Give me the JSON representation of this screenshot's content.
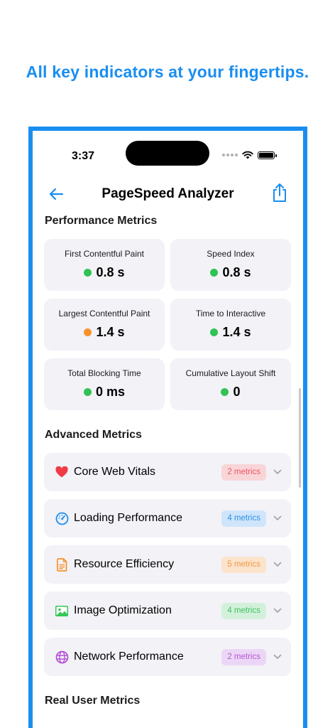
{
  "headline": "All key indicators at your fingertips.",
  "status_bar": {
    "time": "3:37"
  },
  "nav": {
    "title": "PageSpeed Analyzer"
  },
  "performance": {
    "title": "Performance Metrics",
    "metrics": [
      {
        "label": "First Contentful Paint",
        "value": "0.8 s",
        "status_color": "#30c254"
      },
      {
        "label": "Speed Index",
        "value": "0.8 s",
        "status_color": "#30c254"
      },
      {
        "label": "Largest Contentful Paint",
        "value": "1.4 s",
        "status_color": "#f7922b"
      },
      {
        "label": "Time to Interactive",
        "value": "1.4 s",
        "status_color": "#30c254"
      },
      {
        "label": "Total Blocking Time",
        "value": "0 ms",
        "status_color": "#30c254"
      },
      {
        "label": "Cumulative Layout Shift",
        "value": "0",
        "status_color": "#30c254"
      }
    ]
  },
  "advanced": {
    "title": "Advanced Metrics",
    "items": [
      {
        "label": "Core Web Vitals",
        "badge": "2 metrics",
        "icon": "heart-icon",
        "color": "#ef3b45",
        "badge_bg": "#f9d5d8",
        "badge_fg": "#ec5662"
      },
      {
        "label": "Loading Performance",
        "badge": "4 metrics",
        "icon": "gauge-icon",
        "color": "#1a8ef0",
        "badge_bg": "#cfe5fb",
        "badge_fg": "#2e8fe8"
      },
      {
        "label": "Resource Efficiency",
        "badge": "5 metrics",
        "icon": "document-icon",
        "color": "#f7922b",
        "badge_bg": "#fbe3cc",
        "badge_fg": "#f19a48"
      },
      {
        "label": "Image Optimization",
        "badge": "4 metrics",
        "icon": "photo-icon",
        "color": "#34c759",
        "badge_bg": "#d3f1da",
        "badge_fg": "#3fbf63"
      },
      {
        "label": "Network Performance",
        "badge": "2 metrics",
        "icon": "globe-icon",
        "color": "#b44fd6",
        "badge_bg": "#ecd6f6",
        "badge_fg": "#b25ad3"
      }
    ]
  },
  "real_user": {
    "title": "Real User Metrics"
  }
}
